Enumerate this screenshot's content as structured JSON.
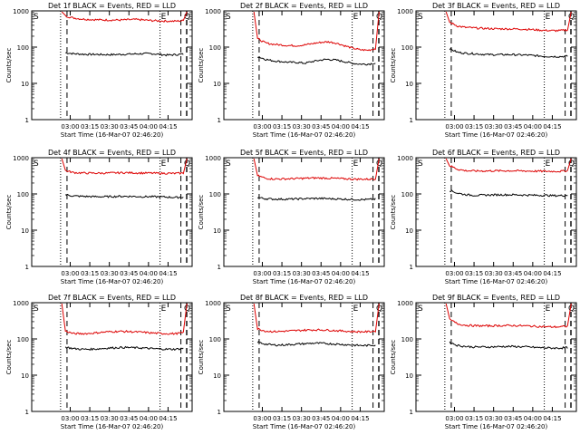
{
  "chart_data": [
    {
      "type": "line",
      "title": "Det 1f BLACK = Events, RED = LLD",
      "xlabel": "Start Time (16-Mar-07 02:46:20)",
      "ylabel": "Counts/sec",
      "y_scale": "log",
      "ylim": [
        1,
        1000
      ],
      "x_ticks": [
        "03:00",
        "03:15",
        "03:30",
        "03:45",
        "04:00",
        "04:15"
      ],
      "series": [
        {
          "color": "#000000",
          "values": [
            70,
            66,
            64,
            63,
            63,
            62,
            62,
            63,
            64,
            65,
            66,
            66,
            63,
            60,
            62,
            64
          ]
        },
        {
          "color": "#dd0000",
          "values": [
            720,
            640,
            600,
            580,
            570,
            560,
            560,
            560,
            570,
            580,
            560,
            540,
            530,
            520,
            520,
            540
          ]
        }
      ]
    },
    {
      "type": "line",
      "title": "Det 2f BLACK = Events, RED = LLD",
      "xlabel": "Start Time (16-Mar-07 02:46:20)",
      "ylabel": "Counts/sec",
      "y_scale": "log",
      "ylim": [
        1,
        1000
      ],
      "x_ticks": [
        "03:00",
        "03:15",
        "03:30",
        "03:45",
        "04:00",
        "04:15"
      ],
      "series": [
        {
          "color": "#000000",
          "values": [
            55,
            46,
            42,
            40,
            38,
            38,
            36,
            40,
            44,
            46,
            44,
            40,
            36,
            34,
            34,
            36
          ]
        },
        {
          "color": "#dd0000",
          "values": [
            170,
            130,
            120,
            115,
            110,
            110,
            115,
            125,
            135,
            140,
            130,
            110,
            95,
            85,
            82,
            90
          ]
        }
      ]
    },
    {
      "type": "line",
      "title": "Det 3f BLACK = Events, RED = LLD",
      "xlabel": "Start Time (16-Mar-07 02:46:20)",
      "ylabel": "Counts/sec",
      "y_scale": "log",
      "ylim": [
        1,
        1000
      ],
      "x_ticks": [
        "03:00",
        "03:15",
        "03:30",
        "03:45",
        "04:00",
        "04:15"
      ],
      "series": [
        {
          "color": "#000000",
          "values": [
            90,
            72,
            68,
            66,
            64,
            62,
            62,
            62,
            62,
            61,
            60,
            58,
            56,
            55,
            55,
            56
          ]
        },
        {
          "color": "#dd0000",
          "values": [
            480,
            380,
            350,
            340,
            330,
            325,
            320,
            320,
            318,
            315,
            310,
            300,
            290,
            285,
            285,
            300
          ]
        }
      ]
    },
    {
      "type": "line",
      "title": "Det 4f BLACK = Events, RED = LLD",
      "xlabel": "Start Time (16-Mar-07 02:46:20)",
      "ylabel": "Counts/sec",
      "y_scale": "log",
      "ylim": [
        1,
        1000
      ],
      "x_ticks": [
        "03:00",
        "03:15",
        "03:30",
        "03:45",
        "04:00",
        "04:15"
      ],
      "series": [
        {
          "color": "#000000",
          "values": [
            95,
            88,
            86,
            85,
            84,
            84,
            85,
            86,
            86,
            85,
            84,
            84,
            83,
            82,
            80,
            82
          ]
        },
        {
          "color": "#dd0000",
          "values": [
            440,
            390,
            380,
            375,
            375,
            375,
            380,
            385,
            385,
            380,
            378,
            375,
            372,
            370,
            368,
            375
          ]
        }
      ]
    },
    {
      "type": "line",
      "title": "Det 5f BLACK = Events, RED = LLD",
      "xlabel": "Start Time (16-Mar-07 02:46:20)",
      "ylabel": "Counts/sec",
      "y_scale": "log",
      "ylim": [
        1,
        1000
      ],
      "x_ticks": [
        "03:00",
        "03:15",
        "03:30",
        "03:45",
        "04:00",
        "04:15"
      ],
      "series": [
        {
          "color": "#000000",
          "values": [
            80,
            74,
            72,
            72,
            72,
            73,
            74,
            75,
            75,
            74,
            73,
            72,
            71,
            70,
            70,
            72
          ]
        },
        {
          "color": "#dd0000",
          "values": [
            320,
            270,
            260,
            260,
            262,
            266,
            270,
            275,
            275,
            272,
            268,
            262,
            258,
            255,
            255,
            262
          ]
        }
      ]
    },
    {
      "type": "line",
      "title": "Det 6f BLACK = Events, RED = LLD",
      "xlabel": "Start Time (16-Mar-07 02:46:20)",
      "ylabel": "Counts/sec",
      "y_scale": "log",
      "ylim": [
        1,
        1000
      ],
      "x_ticks": [
        "03:00",
        "03:15",
        "03:30",
        "03:45",
        "04:00",
        "04:15"
      ],
      "series": [
        {
          "color": "#000000",
          "values": [
            125,
            105,
            96,
            92,
            92,
            94,
            95,
            95,
            95,
            94,
            93,
            92,
            92,
            90,
            90,
            92
          ]
        },
        {
          "color": "#dd0000",
          "values": [
            600,
            480,
            440,
            430,
            430,
            432,
            435,
            435,
            435,
            432,
            428,
            425,
            422,
            420,
            420,
            440
          ]
        }
      ]
    },
    {
      "type": "line",
      "title": "Det 7f BLACK = Events, RED = LLD",
      "xlabel": "Start Time (16-Mar-07 02:46:20)",
      "ylabel": "Counts/sec",
      "y_scale": "log",
      "ylim": [
        1,
        1000
      ],
      "x_ticks": [
        "03:00",
        "03:15",
        "03:30",
        "03:45",
        "04:00",
        "04:15"
      ],
      "series": [
        {
          "color": "#000000",
          "values": [
            60,
            54,
            52,
            52,
            53,
            55,
            57,
            58,
            58,
            57,
            56,
            54,
            53,
            52,
            52,
            55
          ]
        },
        {
          "color": "#dd0000",
          "values": [
            165,
            140,
            140,
            142,
            148,
            155,
            160,
            162,
            160,
            156,
            152,
            146,
            142,
            140,
            140,
            148
          ]
        }
      ]
    },
    {
      "type": "line",
      "title": "Det 8f BLACK = Events, RED = LLD",
      "xlabel": "Start Time (16-Mar-07 02:46:20)",
      "ylabel": "Counts/sec",
      "y_scale": "log",
      "ylim": [
        1,
        1000
      ],
      "x_ticks": [
        "03:00",
        "03:15",
        "03:30",
        "03:45",
        "04:00",
        "04:15"
      ],
      "series": [
        {
          "color": "#000000",
          "values": [
            82,
            72,
            68,
            68,
            70,
            72,
            74,
            76,
            76,
            74,
            72,
            70,
            68,
            66,
            66,
            68
          ]
        },
        {
          "color": "#dd0000",
          "values": [
            190,
            165,
            160,
            162,
            166,
            170,
            175,
            178,
            178,
            175,
            170,
            165,
            160,
            158,
            158,
            165
          ]
        }
      ]
    },
    {
      "type": "line",
      "title": "Det 9f BLACK = Events, RED = LLD",
      "xlabel": "Start Time (16-Mar-07 02:46:20)",
      "ylabel": "Counts/sec",
      "y_scale": "log",
      "ylim": [
        1,
        1000
      ],
      "x_ticks": [
        "03:00",
        "03:15",
        "03:30",
        "03:45",
        "04:00",
        "04:15"
      ],
      "series": [
        {
          "color": "#000000",
          "values": [
            80,
            66,
            62,
            60,
            60,
            60,
            61,
            62,
            62,
            61,
            60,
            58,
            57,
            56,
            56,
            58
          ]
        },
        {
          "color": "#dd0000",
          "values": [
            340,
            260,
            240,
            232,
            230,
            230,
            232,
            234,
            234,
            232,
            228,
            222,
            218,
            215,
            215,
            225
          ]
        }
      ]
    }
  ],
  "panel_markers": {
    "start": "S",
    "end": "E",
    "other": "Q"
  },
  "y_ticks": [
    "1",
    "10",
    "100",
    "1000"
  ]
}
